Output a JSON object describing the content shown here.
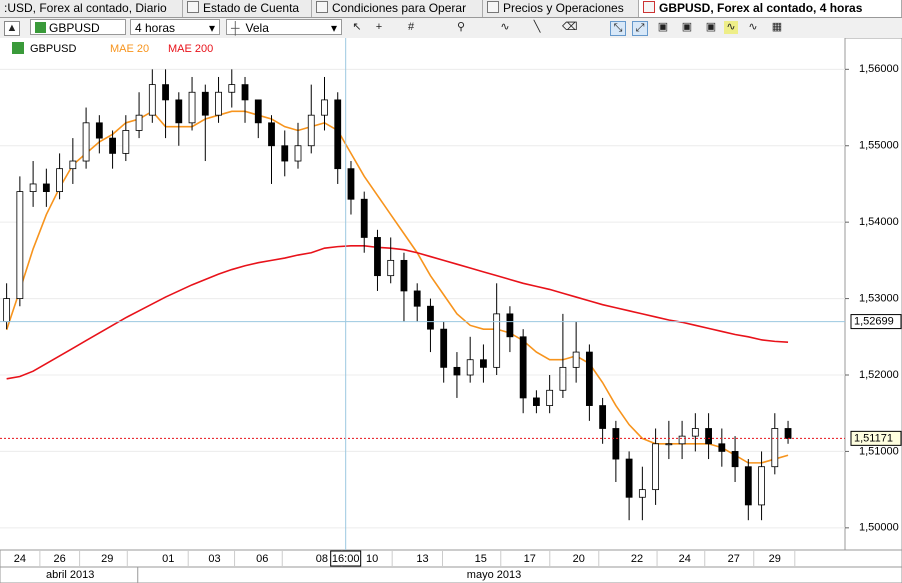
{
  "tabs": [
    ":USD, Forex al contado, Diario",
    "Estado de Cuenta",
    "Condiciones para Operar",
    "Precios y Operaciones",
    "GBPUSD, Forex al contado, 4 horas"
  ],
  "toolbar": {
    "symbol": "GBPUSD",
    "timeframe": "4 horas",
    "chart_style": "Vela"
  },
  "chart_data": {
    "type": "candlestick",
    "name": "GBPUSD",
    "x": [
      0,
      1,
      2,
      3,
      4,
      5,
      6,
      7,
      8,
      9,
      10,
      11,
      12,
      13,
      14,
      15,
      16,
      17,
      18,
      19,
      20,
      21,
      22,
      23,
      24,
      25,
      26,
      27,
      28,
      29,
      30,
      31,
      32,
      33,
      34,
      35,
      36,
      37,
      38,
      39,
      40,
      41,
      42,
      43,
      44,
      45,
      46,
      47,
      48,
      49,
      50,
      51,
      52,
      53,
      54,
      55,
      56,
      57,
      58,
      59
    ],
    "open": [
      1.527,
      1.53,
      1.544,
      1.545,
      1.544,
      1.547,
      1.548,
      1.553,
      1.551,
      1.549,
      1.552,
      1.554,
      1.558,
      1.556,
      1.553,
      1.557,
      1.554,
      1.557,
      1.558,
      1.556,
      1.553,
      1.55,
      1.548,
      1.55,
      1.554,
      1.556,
      1.547,
      1.543,
      1.538,
      1.533,
      1.535,
      1.531,
      1.529,
      1.526,
      1.521,
      1.52,
      1.522,
      1.521,
      1.528,
      1.525,
      1.517,
      1.516,
      1.518,
      1.521,
      1.523,
      1.516,
      1.513,
      1.509,
      1.504,
      1.505,
      1.511,
      1.511,
      1.512,
      1.513,
      1.511,
      1.51,
      1.508,
      1.503,
      1.508,
      1.513
    ],
    "high": [
      1.532,
      1.546,
      1.548,
      1.547,
      1.549,
      1.551,
      1.555,
      1.554,
      1.552,
      1.554,
      1.557,
      1.56,
      1.56,
      1.557,
      1.559,
      1.558,
      1.559,
      1.56,
      1.559,
      1.556,
      1.554,
      1.552,
      1.553,
      1.558,
      1.559,
      1.557,
      1.548,
      1.544,
      1.539,
      1.538,
      1.536,
      1.532,
      1.53,
      1.527,
      1.523,
      1.525,
      1.524,
      1.532,
      1.529,
      1.526,
      1.518,
      1.52,
      1.528,
      1.527,
      1.524,
      1.517,
      1.514,
      1.51,
      1.508,
      1.513,
      1.514,
      1.514,
      1.515,
      1.515,
      1.513,
      1.512,
      1.509,
      1.51,
      1.515,
      1.514
    ],
    "low": [
      1.526,
      1.529,
      1.542,
      1.542,
      1.543,
      1.545,
      1.547,
      1.549,
      1.547,
      1.548,
      1.551,
      1.553,
      1.551,
      1.55,
      1.552,
      1.548,
      1.553,
      1.555,
      1.553,
      1.551,
      1.545,
      1.546,
      1.547,
      1.549,
      1.552,
      1.545,
      1.541,
      1.536,
      1.531,
      1.532,
      1.527,
      1.527,
      1.523,
      1.519,
      1.517,
      1.519,
      1.519,
      1.52,
      1.523,
      1.515,
      1.515,
      1.515,
      1.517,
      1.519,
      1.514,
      1.511,
      1.506,
      1.501,
      1.501,
      1.503,
      1.509,
      1.509,
      1.51,
      1.509,
      1.508,
      1.506,
      1.501,
      1.501,
      1.507,
      1.511
    ],
    "close": [
      1.53,
      1.544,
      1.545,
      1.544,
      1.547,
      1.548,
      1.553,
      1.551,
      1.549,
      1.552,
      1.554,
      1.558,
      1.556,
      1.553,
      1.557,
      1.554,
      1.557,
      1.558,
      1.556,
      1.553,
      1.55,
      1.548,
      1.55,
      1.554,
      1.556,
      1.547,
      1.543,
      1.538,
      1.533,
      1.535,
      1.531,
      1.529,
      1.526,
      1.521,
      1.52,
      1.522,
      1.521,
      1.528,
      1.525,
      1.517,
      1.516,
      1.518,
      1.521,
      1.523,
      1.516,
      1.513,
      1.509,
      1.504,
      1.505,
      1.511,
      1.511,
      1.512,
      1.513,
      1.511,
      1.51,
      1.508,
      1.503,
      1.508,
      1.513,
      1.5117
    ],
    "up_color": "#ffffff",
    "down_color": "#000000",
    "series": [
      {
        "name": "MAE 20",
        "color": "#f7941d",
        "values": [
          1.5259,
          1.5311,
          1.5365,
          1.541,
          1.5445,
          1.5475,
          1.549,
          1.5505,
          1.5515,
          1.553,
          1.5535,
          1.5545,
          1.5525,
          1.5525,
          1.5525,
          1.5535,
          1.554,
          1.5545,
          1.5545,
          1.554,
          1.5535,
          1.5525,
          1.552,
          1.5525,
          1.553,
          1.552,
          1.549,
          1.546,
          1.5435,
          1.541,
          1.5385,
          1.536,
          1.533,
          1.5305,
          1.528,
          1.5265,
          1.526,
          1.526,
          1.5255,
          1.5245,
          1.523,
          1.522,
          1.522,
          1.5225,
          1.5215,
          1.519,
          1.516,
          1.5135,
          1.5117,
          1.511,
          1.511,
          1.511,
          1.511,
          1.511,
          1.5105,
          1.5095,
          1.5085,
          1.5085,
          1.509,
          1.5095
        ]
      },
      {
        "name": "MAE 200",
        "color": "#e8121a",
        "values": [
          1.5195,
          1.5198,
          1.5205,
          1.5215,
          1.5225,
          1.5235,
          1.5245,
          1.5255,
          1.5265,
          1.5275,
          1.5284,
          1.5293,
          1.5302,
          1.531,
          1.5318,
          1.5325,
          1.5332,
          1.5338,
          1.5343,
          1.5347,
          1.535,
          1.5353,
          1.5357,
          1.536,
          1.5366,
          1.5368,
          1.5369,
          1.5369,
          1.5367,
          1.5366,
          1.5364,
          1.536,
          1.5355,
          1.535,
          1.5345,
          1.534,
          1.5335,
          1.533,
          1.5325,
          1.532,
          1.5316,
          1.5312,
          1.5307,
          1.5302,
          1.5297,
          1.5292,
          1.5288,
          1.5284,
          1.528,
          1.5276,
          1.5272,
          1.5269,
          1.5265,
          1.5261,
          1.5257,
          1.5253,
          1.525,
          1.5246,
          1.5244,
          1.5243
        ]
      }
    ],
    "xlim": [
      -0.5,
      63.3
    ],
    "ylim": [
      1.4971,
      1.5641
    ],
    "yticks": [
      {
        "value": 1.5,
        "label": "1,50000"
      },
      {
        "value": 1.51,
        "label": "1,51000"
      },
      {
        "value": 1.52,
        "label": "1,52000"
      },
      {
        "value": 1.53,
        "label": "1,53000"
      },
      {
        "value": 1.54,
        "label": "1,54000"
      },
      {
        "value": 1.55,
        "label": "1,55000"
      },
      {
        "value": 1.56,
        "label": "1,56000"
      }
    ],
    "xticks": [
      {
        "value": 1.0,
        "label": "24"
      },
      {
        "value": 4.0,
        "label": "26"
      },
      {
        "value": 7.6,
        "label": "29"
      },
      {
        "value": 12.2,
        "label": "01"
      },
      {
        "value": 15.7,
        "label": "03"
      },
      {
        "value": 19.3,
        "label": "06"
      },
      {
        "value": 23.8,
        "label": "08"
      },
      {
        "value": 27.6,
        "label": "10"
      },
      {
        "value": 31.4,
        "label": "13"
      },
      {
        "value": 35.8,
        "label": "15"
      },
      {
        "value": 39.5,
        "label": "17"
      },
      {
        "value": 43.2,
        "label": "20"
      },
      {
        "value": 47.6,
        "label": "22"
      },
      {
        "value": 51.2,
        "label": "24"
      },
      {
        "value": 54.9,
        "label": "27"
      },
      {
        "value": 58.0,
        "label": "29"
      }
    ],
    "month_ticks": [
      {
        "value": 4.8,
        "label": "abril 2013"
      },
      {
        "value": 36.8,
        "label": "mayo 2013"
      }
    ],
    "month_boundary": 9.9,
    "grid": true,
    "crosshair": {
      "x": 25.6,
      "x_label": "16:00",
      "y": 1.52699,
      "y_label": "1,52699"
    },
    "price_line": {
      "value": 1.51171,
      "label": "1,51171",
      "color": "#e8121a"
    }
  }
}
